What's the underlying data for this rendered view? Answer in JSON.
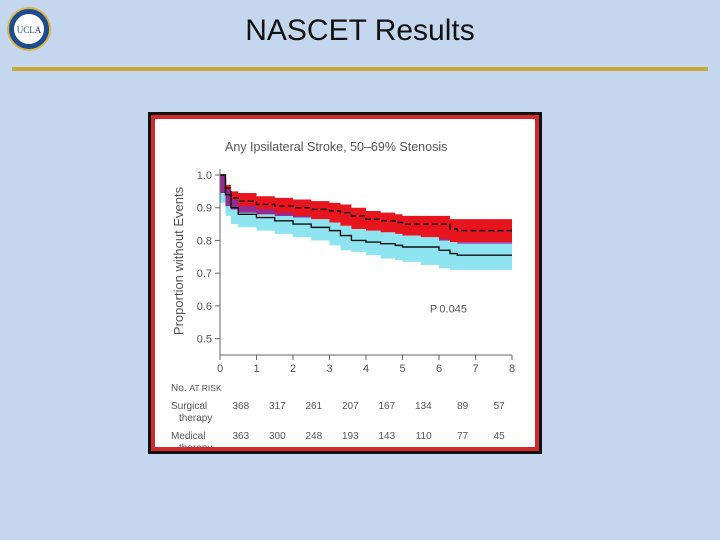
{
  "slide": {
    "title": "NASCET Results",
    "logo_text": "UCLA"
  },
  "colors": {
    "background": "#c5d7ee",
    "rule": "#c9a83a",
    "frame_border": "#d22a2a",
    "surgical_ci": "#e8141e",
    "medical_ci": "#8ee4f0",
    "overlap_ci": "#8a2fa0",
    "line": "#111111"
  },
  "chart_data": {
    "type": "line",
    "title": "Any Ipsilateral Stroke, 50–69% Stenosis",
    "xlabel": "",
    "ylabel": "Proportion without Events",
    "xlim": [
      0,
      8
    ],
    "ylim": [
      0.45,
      1.0
    ],
    "x_ticks": [
      0,
      1,
      2,
      3,
      4,
      5,
      6,
      7,
      8
    ],
    "y_ticks": [
      1.0,
      0.9,
      0.8,
      0.7,
      0.6,
      0.5
    ],
    "y_tick_labels": [
      "1.0",
      "0.9",
      "0.8",
      "0.7",
      "0.6",
      "0.5"
    ],
    "annotation": "P 0.045",
    "series": [
      {
        "key": "surgical",
        "style": "dashed",
        "x": [
          0,
          0.15,
          0.3,
          0.5,
          1,
          1.5,
          2,
          2.5,
          3,
          3.3,
          3.6,
          4,
          4.4,
          4.8,
          5,
          5.5,
          6,
          6.3,
          6.5,
          7,
          7.5,
          8
        ],
        "y": [
          1.0,
          0.96,
          0.93,
          0.92,
          0.91,
          0.905,
          0.9,
          0.895,
          0.89,
          0.885,
          0.875,
          0.865,
          0.86,
          0.855,
          0.85,
          0.85,
          0.85,
          0.835,
          0.83,
          0.83,
          0.83,
          0.83
        ],
        "upper": [
          1.0,
          0.97,
          0.95,
          0.945,
          0.935,
          0.93,
          0.925,
          0.92,
          0.915,
          0.91,
          0.9,
          0.89,
          0.885,
          0.88,
          0.875,
          0.875,
          0.875,
          0.865,
          0.865,
          0.865,
          0.865,
          0.865
        ],
        "lower": [
          1.0,
          0.945,
          0.905,
          0.895,
          0.885,
          0.88,
          0.875,
          0.87,
          0.865,
          0.855,
          0.845,
          0.835,
          0.83,
          0.825,
          0.82,
          0.815,
          0.81,
          0.8,
          0.795,
          0.795,
          0.795,
          0.795
        ]
      },
      {
        "key": "medical",
        "style": "solid",
        "x": [
          0,
          0.15,
          0.3,
          0.5,
          1,
          1.5,
          2,
          2.5,
          3,
          3.3,
          3.6,
          4,
          4.4,
          4.8,
          5,
          5.5,
          6,
          6.3,
          6.5,
          7,
          7.5,
          8
        ],
        "y": [
          1.0,
          0.94,
          0.9,
          0.88,
          0.87,
          0.86,
          0.85,
          0.84,
          0.83,
          0.815,
          0.8,
          0.795,
          0.79,
          0.785,
          0.78,
          0.78,
          0.77,
          0.76,
          0.755,
          0.755,
          0.755,
          0.755
        ],
        "upper": [
          1.0,
          0.955,
          0.925,
          0.905,
          0.895,
          0.885,
          0.875,
          0.865,
          0.855,
          0.845,
          0.835,
          0.83,
          0.825,
          0.82,
          0.815,
          0.81,
          0.805,
          0.795,
          0.79,
          0.79,
          0.79,
          0.79
        ],
        "lower": [
          1.0,
          0.915,
          0.875,
          0.85,
          0.84,
          0.83,
          0.82,
          0.81,
          0.8,
          0.785,
          0.77,
          0.765,
          0.755,
          0.745,
          0.74,
          0.735,
          0.725,
          0.715,
          0.71,
          0.71,
          0.71,
          0.71
        ]
      }
    ],
    "risk_table": {
      "heading_prefix": "No.",
      "heading_rest": "at Risk",
      "rows": [
        {
          "label_line1": "Surgical",
          "label_line2": "therapy",
          "values": [
            "368",
            "317",
            "261",
            "207",
            "167",
            "134",
            "89",
            "57"
          ]
        },
        {
          "label_line1": "Medical",
          "label_line2": "therapy",
          "values": [
            "363",
            "300",
            "248",
            "193",
            "143",
            "110",
            "77",
            "45"
          ]
        }
      ]
    }
  }
}
